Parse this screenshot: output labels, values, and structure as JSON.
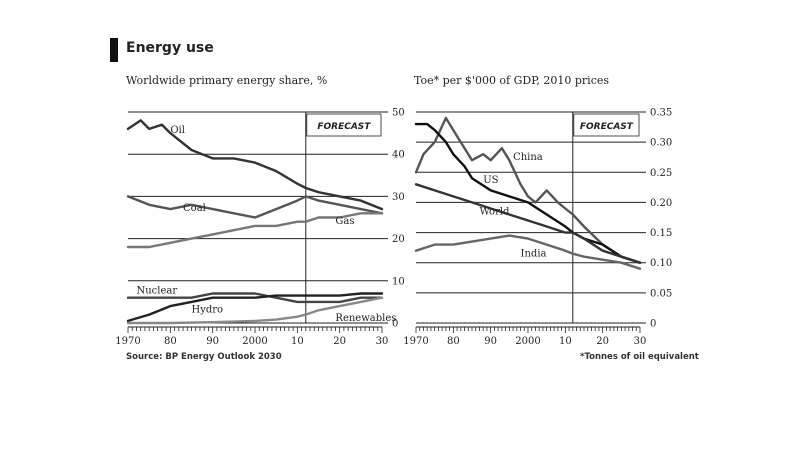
{
  "title": "Energy use",
  "chart_data": [
    {
      "type": "line",
      "subtitle": "Worldwide primary energy share, %",
      "source": "Source: BP Energy Outlook 2030",
      "forecast_label": "FORECAST",
      "forecast_start": 2012,
      "xlim": [
        1970,
        2030
      ],
      "ylim": [
        0,
        50
      ],
      "y_ticks": [
        0,
        10,
        20,
        30,
        40,
        50
      ],
      "x_tick_labels": [
        {
          "x": 1970,
          "label": "1970"
        },
        {
          "x": 1980,
          "label": "80"
        },
        {
          "x": 1990,
          "label": "90"
        },
        {
          "x": 2000,
          "label": "2000"
        },
        {
          "x": 2010,
          "label": "10"
        },
        {
          "x": 2020,
          "label": "20"
        },
        {
          "x": 2030,
          "label": "30"
        }
      ],
      "grid": true,
      "series": [
        {
          "name": "Oil",
          "color": "#333333",
          "x": [
            1970,
            1973,
            1975,
            1978,
            1980,
            1985,
            1990,
            1995,
            2000,
            2005,
            2010,
            2012,
            2015,
            2020,
            2025,
            2030
          ],
          "y": [
            46,
            48,
            46,
            47,
            45,
            41,
            39,
            39,
            38,
            36,
            33,
            32,
            31,
            30,
            29,
            27
          ]
        },
        {
          "name": "Coal",
          "color": "#555555",
          "x": [
            1970,
            1975,
            1980,
            1985,
            1990,
            1995,
            2000,
            2005,
            2010,
            2012,
            2015,
            2020,
            2025,
            2030
          ],
          "y": [
            30,
            28,
            27,
            28,
            27,
            26,
            25,
            27,
            29,
            30,
            29,
            28,
            27,
            26
          ]
        },
        {
          "name": "Gas",
          "color": "#777777",
          "x": [
            1970,
            1975,
            1980,
            1985,
            1990,
            1995,
            2000,
            2005,
            2010,
            2012,
            2015,
            2020,
            2025,
            2030
          ],
          "y": [
            18,
            18,
            19,
            20,
            21,
            22,
            23,
            23,
            24,
            24,
            25,
            25,
            26,
            26
          ]
        },
        {
          "name": "Nuclear",
          "color": "#444444",
          "x": [
            1970,
            1975,
            1980,
            1985,
            1990,
            1995,
            2000,
            2005,
            2010,
            2012,
            2015,
            2020,
            2025,
            2030
          ],
          "y": [
            6,
            6,
            6,
            6,
            7,
            7,
            7,
            6,
            5,
            5,
            5,
            5,
            6,
            6
          ]
        },
        {
          "name": "Hydro",
          "color": "#222222",
          "x": [
            1970,
            1975,
            1980,
            1985,
            1990,
            1995,
            2000,
            2005,
            2010,
            2012,
            2015,
            2020,
            2025,
            2030
          ],
          "y": [
            0.5,
            2,
            4,
            5,
            6,
            6,
            6,
            6.5,
            6.5,
            6.5,
            6.5,
            6.5,
            7,
            7
          ]
        },
        {
          "name": "Renewables",
          "color": "#888888",
          "x": [
            1970,
            1980,
            1990,
            2000,
            2005,
            2010,
            2012,
            2015,
            2020,
            2025,
            2030
          ],
          "y": [
            0,
            0,
            0.2,
            0.5,
            0.8,
            1.5,
            2,
            3,
            4,
            5,
            6
          ]
        }
      ],
      "labels": [
        {
          "text": "Oil",
          "x": 1980,
          "y": 45
        },
        {
          "text": "Coal",
          "x": 1983,
          "y": 26.5
        },
        {
          "text": "Gas",
          "x": 2019,
          "y": 23.5
        },
        {
          "text": "Nuclear",
          "x": 1972,
          "y": 7
        },
        {
          "text": "Hydro",
          "x": 1985,
          "y": 2.5
        },
        {
          "text": "Renewables",
          "x": 2019,
          "y": 0.5
        }
      ]
    },
    {
      "type": "line",
      "subtitle": "Toe* per $'000 of GDP, 2010 prices",
      "source": "*Tonnes of oil equivalent",
      "forecast_label": "FORECAST",
      "forecast_start": 2012,
      "xlim": [
        1970,
        2030
      ],
      "ylim": [
        0,
        0.35
      ],
      "y_ticks": [
        0,
        0.05,
        0.1,
        0.15,
        0.2,
        0.25,
        0.3,
        0.35
      ],
      "y_tick_labels": [
        "0",
        "0.05",
        "0.10",
        "0.15",
        "0.20",
        "0.25",
        "0.30",
        "0.35"
      ],
      "x_tick_labels": [
        {
          "x": 1970,
          "label": "1970"
        },
        {
          "x": 1980,
          "label": "80"
        },
        {
          "x": 1990,
          "label": "90"
        },
        {
          "x": 2000,
          "label": "2000"
        },
        {
          "x": 2010,
          "label": "10"
        },
        {
          "x": 2020,
          "label": "20"
        },
        {
          "x": 2030,
          "label": "30"
        }
      ],
      "grid": true,
      "series": [
        {
          "name": "China",
          "color": "#555555",
          "x": [
            1970,
            1972,
            1975,
            1978,
            1980,
            1983,
            1985,
            1988,
            1990,
            1993,
            1995,
            1998,
            2000,
            2002,
            2005,
            2008,
            2010,
            2012,
            2015,
            2020,
            2025,
            2030
          ],
          "y": [
            0.25,
            0.28,
            0.3,
            0.34,
            0.32,
            0.29,
            0.27,
            0.28,
            0.27,
            0.29,
            0.27,
            0.23,
            0.21,
            0.2,
            0.22,
            0.2,
            0.19,
            0.18,
            0.16,
            0.13,
            0.11,
            0.1
          ]
        },
        {
          "name": "US",
          "color": "#111111",
          "x": [
            1970,
            1973,
            1975,
            1978,
            1980,
            1983,
            1985,
            1990,
            1995,
            2000,
            2005,
            2010,
            2012,
            2015,
            2020,
            2025,
            2030
          ],
          "y": [
            0.33,
            0.33,
            0.32,
            0.3,
            0.28,
            0.26,
            0.24,
            0.22,
            0.21,
            0.2,
            0.18,
            0.16,
            0.15,
            0.14,
            0.13,
            0.11,
            0.1
          ]
        },
        {
          "name": "World",
          "color": "#333333",
          "x": [
            1970,
            1975,
            1980,
            1985,
            1990,
            1995,
            2000,
            2005,
            2010,
            2012,
            2015,
            2020,
            2025,
            2030
          ],
          "y": [
            0.23,
            0.22,
            0.21,
            0.2,
            0.19,
            0.18,
            0.17,
            0.16,
            0.15,
            0.15,
            0.14,
            0.12,
            0.11,
            0.1
          ]
        },
        {
          "name": "India",
          "color": "#666666",
          "x": [
            1970,
            1975,
            1980,
            1985,
            1990,
            1995,
            2000,
            2005,
            2010,
            2012,
            2015,
            2020,
            2025,
            2030
          ],
          "y": [
            0.12,
            0.13,
            0.13,
            0.135,
            0.14,
            0.145,
            0.14,
            0.13,
            0.12,
            0.115,
            0.11,
            0.105,
            0.1,
            0.09
          ]
        }
      ],
      "labels": [
        {
          "text": "China",
          "x": 1996,
          "y": 0.27
        },
        {
          "text": "US",
          "x": 1988,
          "y": 0.232
        },
        {
          "text": "World",
          "x": 1987,
          "y": 0.18
        },
        {
          "text": "India",
          "x": 1998,
          "y": 0.11
        }
      ]
    }
  ]
}
